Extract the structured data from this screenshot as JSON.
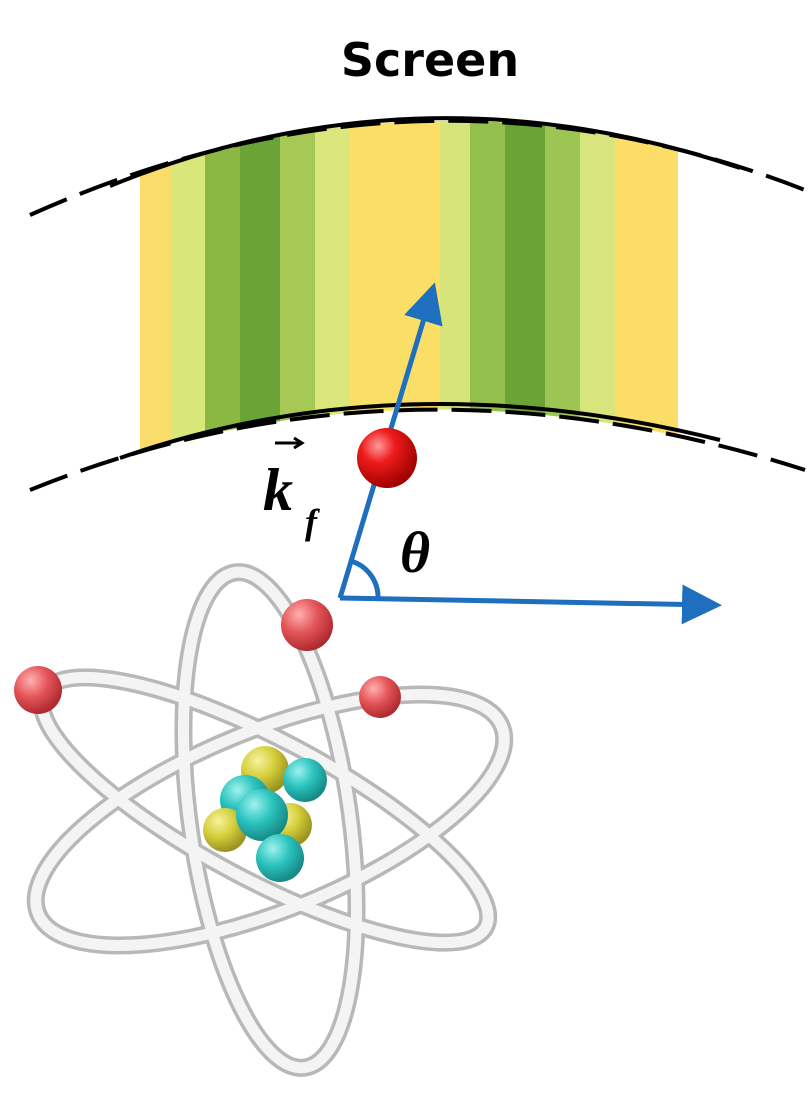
{
  "title": "Screen",
  "labels": {
    "vector": "k",
    "subscript": "f",
    "angle": "θ"
  }
}
